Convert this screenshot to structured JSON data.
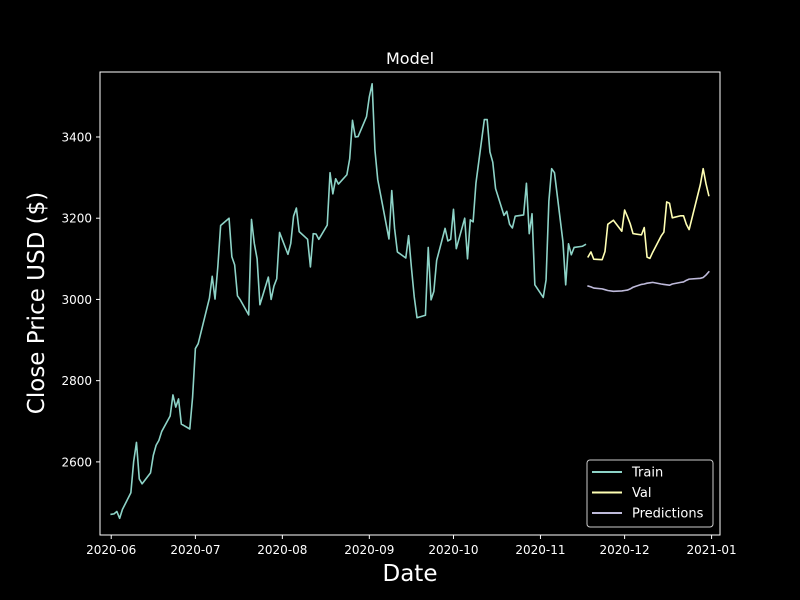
{
  "chart_data": {
    "type": "line",
    "title": "Model",
    "xlabel": "Date",
    "ylabel": "Close Price USD ($)",
    "xlim": [
      "2020-05-28",
      "2021-01-04"
    ],
    "ylim": [
      2420,
      3560
    ],
    "x_ticks": [
      "2020-06",
      "2020-07",
      "2020-08",
      "2020-09",
      "2020-10",
      "2020-11",
      "2020-12",
      "2021-01"
    ],
    "y_ticks": [
      2600,
      2800,
      3000,
      3200,
      3400
    ],
    "grid": false,
    "legend_position": "lower-right",
    "background": "#000000",
    "foreground": "#ffffff",
    "series": [
      {
        "name": "Train",
        "color": "#8dd3c7",
        "points": [
          [
            "2020-06-01",
            2471
          ],
          [
            "2020-06-02",
            2472
          ],
          [
            "2020-06-03",
            2478
          ],
          [
            "2020-06-04",
            2461
          ],
          [
            "2020-06-05",
            2483
          ],
          [
            "2020-06-08",
            2524
          ],
          [
            "2020-06-09",
            2601
          ],
          [
            "2020-06-10",
            2648
          ],
          [
            "2020-06-11",
            2558
          ],
          [
            "2020-06-12",
            2546
          ],
          [
            "2020-06-15",
            2573
          ],
          [
            "2020-06-16",
            2616
          ],
          [
            "2020-06-17",
            2641
          ],
          [
            "2020-06-18",
            2653
          ],
          [
            "2020-06-19",
            2675
          ],
          [
            "2020-06-22",
            2713
          ],
          [
            "2020-06-23",
            2765
          ],
          [
            "2020-06-24",
            2735
          ],
          [
            "2020-06-25",
            2755
          ],
          [
            "2020-06-26",
            2693
          ],
          [
            "2020-06-29",
            2681
          ],
          [
            "2020-06-30",
            2759
          ],
          [
            "2020-07-01",
            2879
          ],
          [
            "2020-07-02",
            2891
          ],
          [
            "2020-07-06",
            3003
          ],
          [
            "2020-07-07",
            3057
          ],
          [
            "2020-07-08",
            3001
          ],
          [
            "2020-07-09",
            3081
          ],
          [
            "2020-07-10",
            3182
          ],
          [
            "2020-07-13",
            3200
          ],
          [
            "2020-07-14",
            3105
          ],
          [
            "2020-07-15",
            3085
          ],
          [
            "2020-07-16",
            3009
          ],
          [
            "2020-07-17",
            2999
          ],
          [
            "2020-07-20",
            2962
          ],
          [
            "2020-07-21",
            3197
          ],
          [
            "2020-07-22",
            3138
          ],
          [
            "2020-07-23",
            3100
          ],
          [
            "2020-07-24",
            2987
          ],
          [
            "2020-07-27",
            3055
          ],
          [
            "2020-07-28",
            3000
          ],
          [
            "2020-07-29",
            3033
          ],
          [
            "2020-07-30",
            3051
          ],
          [
            "2020-07-31",
            3165
          ],
          [
            "2020-08-03",
            3111
          ],
          [
            "2020-08-04",
            3138
          ],
          [
            "2020-08-05",
            3205
          ],
          [
            "2020-08-06",
            3225
          ],
          [
            "2020-08-07",
            3167
          ],
          [
            "2020-08-10",
            3148
          ],
          [
            "2020-08-11",
            3080
          ],
          [
            "2020-08-12",
            3162
          ],
          [
            "2020-08-13",
            3161
          ],
          [
            "2020-08-14",
            3148
          ],
          [
            "2020-08-17",
            3183
          ],
          [
            "2020-08-18",
            3312
          ],
          [
            "2020-08-19",
            3260
          ],
          [
            "2020-08-20",
            3297
          ],
          [
            "2020-08-21",
            3284
          ],
          [
            "2020-08-24",
            3307
          ],
          [
            "2020-08-25",
            3346
          ],
          [
            "2020-08-26",
            3441
          ],
          [
            "2020-08-27",
            3400
          ],
          [
            "2020-08-28",
            3401
          ],
          [
            "2020-08-31",
            3450
          ],
          [
            "2020-09-01",
            3499
          ],
          [
            "2020-09-02",
            3531
          ],
          [
            "2020-09-03",
            3368
          ],
          [
            "2020-09-04",
            3295
          ],
          [
            "2020-09-08",
            3149
          ],
          [
            "2020-09-09",
            3268
          ],
          [
            "2020-09-10",
            3175
          ],
          [
            "2020-09-11",
            3117
          ],
          [
            "2020-09-14",
            3102
          ],
          [
            "2020-09-15",
            3157
          ],
          [
            "2020-09-16",
            3079
          ],
          [
            "2020-09-17",
            3007
          ],
          [
            "2020-09-18",
            2955
          ],
          [
            "2020-09-21",
            2961
          ],
          [
            "2020-09-22",
            3128
          ],
          [
            "2020-09-23",
            2999
          ],
          [
            "2020-09-24",
            3020
          ],
          [
            "2020-09-25",
            3096
          ],
          [
            "2020-09-28",
            3175
          ],
          [
            "2020-09-29",
            3144
          ],
          [
            "2020-09-30",
            3148
          ],
          [
            "2020-10-01",
            3222
          ],
          [
            "2020-10-02",
            3125
          ],
          [
            "2020-10-05",
            3200
          ],
          [
            "2020-10-06",
            3100
          ],
          [
            "2020-10-07",
            3196
          ],
          [
            "2020-10-08",
            3191
          ],
          [
            "2020-10-09",
            3286
          ],
          [
            "2020-10-12",
            3443
          ],
          [
            "2020-10-13",
            3443
          ],
          [
            "2020-10-14",
            3363
          ],
          [
            "2020-10-15",
            3338
          ],
          [
            "2020-10-16",
            3273
          ],
          [
            "2020-10-19",
            3207
          ],
          [
            "2020-10-20",
            3217
          ],
          [
            "2020-10-21",
            3185
          ],
          [
            "2020-10-22",
            3176
          ],
          [
            "2020-10-23",
            3205
          ],
          [
            "2020-10-26",
            3208
          ],
          [
            "2020-10-27",
            3286
          ],
          [
            "2020-10-28",
            3162
          ],
          [
            "2020-10-29",
            3211
          ],
          [
            "2020-10-30",
            3036
          ],
          [
            "2020-11-02",
            3005
          ],
          [
            "2020-11-03",
            3048
          ],
          [
            "2020-11-04",
            3242
          ],
          [
            "2020-11-05",
            3322
          ],
          [
            "2020-11-06",
            3312
          ],
          [
            "2020-11-09",
            3143
          ],
          [
            "2020-11-10",
            3036
          ],
          [
            "2020-11-11",
            3137
          ],
          [
            "2020-11-12",
            3110
          ],
          [
            "2020-11-13",
            3128
          ],
          [
            "2020-11-16",
            3131
          ],
          [
            "2020-11-17",
            3135
          ]
        ]
      },
      {
        "name": "Val",
        "color": "#ffffb3",
        "points": [
          [
            "2020-11-18",
            3105
          ],
          [
            "2020-11-19",
            3117
          ],
          [
            "2020-11-20",
            3099
          ],
          [
            "2020-11-23",
            3098
          ],
          [
            "2020-11-24",
            3118
          ],
          [
            "2020-11-25",
            3185
          ],
          [
            "2020-11-27",
            3195
          ],
          [
            "2020-11-30",
            3168
          ],
          [
            "2020-12-01",
            3220
          ],
          [
            "2020-12-02",
            3204
          ],
          [
            "2020-12-03",
            3186
          ],
          [
            "2020-12-04",
            3162
          ],
          [
            "2020-12-07",
            3159
          ],
          [
            "2020-12-08",
            3177
          ],
          [
            "2020-12-09",
            3104
          ],
          [
            "2020-12-10",
            3101
          ],
          [
            "2020-12-11",
            3116
          ],
          [
            "2020-12-14",
            3156
          ],
          [
            "2020-12-15",
            3166
          ],
          [
            "2020-12-16",
            3240
          ],
          [
            "2020-12-17",
            3237
          ],
          [
            "2020-12-18",
            3201
          ],
          [
            "2020-12-21",
            3206
          ],
          [
            "2020-12-22",
            3206
          ],
          [
            "2020-12-23",
            3185
          ],
          [
            "2020-12-24",
            3172
          ],
          [
            "2020-12-28",
            3283
          ],
          [
            "2020-12-29",
            3322
          ],
          [
            "2020-12-30",
            3285
          ],
          [
            "2020-12-31",
            3256
          ]
        ]
      },
      {
        "name": "Predictions",
        "color": "#bebada",
        "points": [
          [
            "2020-11-18",
            3033
          ],
          [
            "2020-11-19",
            3031
          ],
          [
            "2020-11-20",
            3028
          ],
          [
            "2020-11-23",
            3026
          ],
          [
            "2020-11-24",
            3024
          ],
          [
            "2020-11-25",
            3022
          ],
          [
            "2020-11-27",
            3020
          ],
          [
            "2020-11-30",
            3021
          ],
          [
            "2020-12-01",
            3022
          ],
          [
            "2020-12-02",
            3023
          ],
          [
            "2020-12-03",
            3026
          ],
          [
            "2020-12-04",
            3030
          ],
          [
            "2020-12-07",
            3037
          ],
          [
            "2020-12-08",
            3038
          ],
          [
            "2020-12-09",
            3040
          ],
          [
            "2020-12-10",
            3041
          ],
          [
            "2020-12-11",
            3042
          ],
          [
            "2020-12-14",
            3038
          ],
          [
            "2020-12-15",
            3037
          ],
          [
            "2020-12-16",
            3036
          ],
          [
            "2020-12-17",
            3035
          ],
          [
            "2020-12-18",
            3038
          ],
          [
            "2020-12-21",
            3042
          ],
          [
            "2020-12-22",
            3043
          ],
          [
            "2020-12-23",
            3047
          ],
          [
            "2020-12-24",
            3050
          ],
          [
            "2020-12-28",
            3052
          ],
          [
            "2020-12-29",
            3054
          ],
          [
            "2020-12-30",
            3060
          ],
          [
            "2020-12-31",
            3068
          ]
        ]
      }
    ]
  }
}
